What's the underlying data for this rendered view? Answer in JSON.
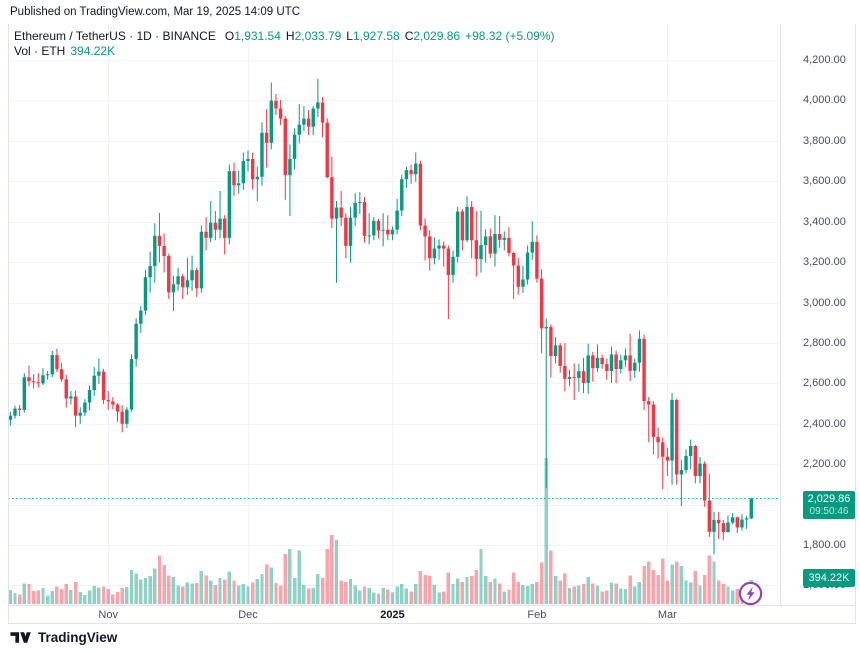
{
  "published": "Published on TradingView.com, Mar 19, 2025 14:09 UTC",
  "legend": {
    "title": "Ethereum / TetherUS · 1D · BINANCE",
    "o_label": "O",
    "o": "1,931.54",
    "h_label": "H",
    "h": "2,033.79",
    "l_label": "L",
    "l": "1,927.58",
    "c_label": "C",
    "c": "2,029.86",
    "change": "+98.32 (+5.09%)",
    "vol_label": "Vol · ETH",
    "vol_value": "394.22K"
  },
  "price_line": {
    "label": "2,029.86",
    "countdown": "09:50:46"
  },
  "volume_badge": "394.22K",
  "logo_text": "TradingView",
  "colors": {
    "up": "#089981",
    "down": "#f23645",
    "grid": "#f0f3fa",
    "border": "#e0e3eb",
    "text": "#131722",
    "axis_text": "#4a4e59",
    "accent_purple": "#9c3fb5",
    "volume_opacity": 0.45
  },
  "price_axis": {
    "labels": [
      {
        "text": "4,200.00",
        "value": 4200
      },
      {
        "text": "4,000.00",
        "value": 4000
      },
      {
        "text": "3,800.00",
        "value": 3800
      },
      {
        "text": "3,600.00",
        "value": 3600
      },
      {
        "text": "3,400.00",
        "value": 3400
      },
      {
        "text": "3,200.00",
        "value": 3200
      },
      {
        "text": "3,000.00",
        "value": 3000
      },
      {
        "text": "2,800.00",
        "value": 2800
      },
      {
        "text": "2,600.00",
        "value": 2600
      },
      {
        "text": "2,400.00",
        "value": 2400
      },
      {
        "text": "2,200.00",
        "value": 2200
      },
      {
        "text": "1,800.00",
        "value": 1800
      },
      {
        "text": "1,600.00",
        "value": 1600
      }
    ]
  },
  "time_axis": {
    "labels": [
      {
        "text": "Nov",
        "index": 21,
        "bold": false
      },
      {
        "text": "Dec",
        "index": 51,
        "bold": false
      },
      {
        "text": "2025",
        "index": 82,
        "bold": true
      },
      {
        "text": "Feb",
        "index": 113,
        "bold": false
      },
      {
        "text": "Mar",
        "index": 141,
        "bold": false
      }
    ]
  },
  "chart_data": {
    "type": "candlestick",
    "symbol": "Ethereum / TetherUS",
    "exchange": "BINANCE",
    "interval": "1D",
    "start_date": "2024-10-11",
    "end_date": "2025-03-19",
    "y_axis": {
      "label_min": 1600,
      "label_max": 4200,
      "step": 200
    },
    "x_axis_labels": [
      "Nov",
      "Dec",
      "2025",
      "Feb",
      "Mar"
    ],
    "month_start_indices": [
      21,
      51,
      82,
      113,
      141
    ],
    "volume_unit": "K ETH",
    "last": {
      "open": 1931.54,
      "high": 2033.79,
      "low": 1927.58,
      "close": 2029.86,
      "change": 98.32,
      "change_pct": 5.09,
      "volume_k": 394.22
    },
    "ohlcv": [
      [
        2420,
        2460,
        2390,
        2440,
        230
      ],
      [
        2440,
        2490,
        2425,
        2475,
        180
      ],
      [
        2475,
        2492,
        2438,
        2468,
        160
      ],
      [
        2468,
        2650,
        2455,
        2630,
        340
      ],
      [
        2630,
        2688,
        2585,
        2610,
        330
      ],
      [
        2610,
        2645,
        2575,
        2605,
        210
      ],
      [
        2605,
        2650,
        2580,
        2600,
        225
      ],
      [
        2600,
        2675,
        2592,
        2640,
        260
      ],
      [
        2640,
        2662,
        2618,
        2645,
        140
      ],
      [
        2645,
        2760,
        2630,
        2740,
        210
      ],
      [
        2740,
        2772,
        2655,
        2670,
        290
      ],
      [
        2670,
        2700,
        2608,
        2620,
        245
      ],
      [
        2620,
        2642,
        2480,
        2525,
        330
      ],
      [
        2525,
        2562,
        2495,
        2535,
        230
      ],
      [
        2535,
        2565,
        2382,
        2440,
        360
      ],
      [
        2440,
        2482,
        2400,
        2455,
        195
      ],
      [
        2455,
        2522,
        2438,
        2505,
        150
      ],
      [
        2505,
        2590,
        2468,
        2567,
        225
      ],
      [
        2567,
        2680,
        2538,
        2638,
        295
      ],
      [
        2638,
        2722,
        2598,
        2658,
        275
      ],
      [
        2658,
        2672,
        2498,
        2518,
        285
      ],
      [
        2518,
        2562,
        2468,
        2511,
        245
      ],
      [
        2511,
        2532,
        2472,
        2495,
        160
      ],
      [
        2495,
        2502,
        2410,
        2460,
        195
      ],
      [
        2460,
        2492,
        2358,
        2400,
        260
      ],
      [
        2400,
        2482,
        2380,
        2470,
        280
      ],
      [
        2470,
        2744,
        2460,
        2720,
        560
      ],
      [
        2720,
        2922,
        2682,
        2895,
        500
      ],
      [
        2895,
        2982,
        2848,
        2960,
        400
      ],
      [
        2960,
        3162,
        2938,
        3125,
        430
      ],
      [
        3125,
        3252,
        3048,
        3180,
        460
      ],
      [
        3180,
        3392,
        3098,
        3330,
        580
      ],
      [
        3330,
        3444,
        3198,
        3280,
        800
      ],
      [
        3280,
        3342,
        3148,
        3230,
        640
      ],
      [
        3230,
        3242,
        3018,
        3050,
        470
      ],
      [
        3050,
        3132,
        2958,
        3090,
        440
      ],
      [
        3090,
        3172,
        3058,
        3130,
        300
      ],
      [
        3130,
        3142,
        3018,
        3075,
        285
      ],
      [
        3075,
        3222,
        3038,
        3110,
        355
      ],
      [
        3110,
        3232,
        3058,
        3160,
        335
      ],
      [
        3160,
        3172,
        3028,
        3070,
        345
      ],
      [
        3070,
        3382,
        3048,
        3350,
        540
      ],
      [
        3350,
        3422,
        3258,
        3320,
        470
      ],
      [
        3320,
        3502,
        3298,
        3395,
        385
      ],
      [
        3395,
        3452,
        3308,
        3360,
        315
      ],
      [
        3360,
        3552,
        3318,
        3415,
        430
      ],
      [
        3415,
        3432,
        3238,
        3320,
        405
      ],
      [
        3320,
        3682,
        3288,
        3650,
        530
      ],
      [
        3650,
        3692,
        3528,
        3580,
        385
      ],
      [
        3580,
        3652,
        3538,
        3590,
        305
      ],
      [
        3590,
        3742,
        3558,
        3700,
        325
      ],
      [
        3700,
        3752,
        3648,
        3710,
        285
      ],
      [
        3710,
        3742,
        3558,
        3610,
        355
      ],
      [
        3610,
        3672,
        3502,
        3622,
        410
      ],
      [
        3622,
        3892,
        3578,
        3840,
        490
      ],
      [
        3840,
        3956,
        3668,
        3790,
        650
      ],
      [
        3790,
        4088,
        3758,
        3998,
        600
      ],
      [
        3998,
        4032,
        3928,
        3960,
        345
      ],
      [
        3960,
        4002,
        3878,
        3910,
        305
      ],
      [
        3910,
        3922,
        3508,
        3630,
        820
      ],
      [
        3630,
        3782,
        3428,
        3710,
        900
      ],
      [
        3710,
        3862,
        3658,
        3830,
        430
      ],
      [
        3830,
        3982,
        3788,
        3880,
        880
      ],
      [
        3880,
        3972,
        3848,
        3910,
        310
      ],
      [
        3910,
        3952,
        3828,
        3870,
        255
      ],
      [
        3870,
        3972,
        3828,
        3960,
        265
      ],
      [
        3960,
        4107,
        3918,
        3990,
        490
      ],
      [
        3990,
        4016,
        3818,
        3890,
        430
      ],
      [
        3890,
        3912,
        3615,
        3620,
        900
      ],
      [
        3620,
        3722,
        3368,
        3415,
        1130
      ],
      [
        3415,
        3502,
        3098,
        3470,
        1050
      ],
      [
        3470,
        3552,
        3378,
        3420,
        390
      ],
      [
        3420,
        3442,
        3218,
        3280,
        360
      ],
      [
        3280,
        3472,
        3198,
        3420,
        410
      ],
      [
        3420,
        3542,
        3378,
        3492,
        305
      ],
      [
        3492,
        3546,
        3438,
        3497,
        225
      ],
      [
        3497,
        3522,
        3298,
        3330,
        285
      ],
      [
        3330,
        3442,
        3288,
        3332,
        265
      ],
      [
        3332,
        3422,
        3308,
        3404,
        185
      ],
      [
        3404,
        3414,
        3318,
        3356,
        175
      ],
      [
        3356,
        3442,
        3278,
        3360,
        265
      ],
      [
        3360,
        3432,
        3308,
        3337,
        235
      ],
      [
        3337,
        3376,
        3308,
        3360,
        185
      ],
      [
        3360,
        3512,
        3338,
        3455,
        285
      ],
      [
        3455,
        3632,
        3428,
        3610,
        330
      ],
      [
        3610,
        3672,
        3568,
        3655,
        255
      ],
      [
        3655,
        3682,
        3588,
        3635,
        205
      ],
      [
        3635,
        3742,
        3598,
        3687,
        330
      ],
      [
        3687,
        3702,
        3358,
        3381,
        540
      ],
      [
        3381,
        3416,
        3208,
        3327,
        480
      ],
      [
        3327,
        3358,
        3158,
        3219,
        460
      ],
      [
        3219,
        3322,
        3188,
        3267,
        310
      ],
      [
        3267,
        3312,
        3212,
        3282,
        185
      ],
      [
        3282,
        3302,
        3178,
        3267,
        205
      ],
      [
        3267,
        3282,
        2918,
        3136,
        520
      ],
      [
        3136,
        3258,
        3098,
        3226,
        330
      ],
      [
        3226,
        3473,
        3198,
        3450,
        420
      ],
      [
        3450,
        3462,
        3258,
        3308,
        365
      ],
      [
        3308,
        3526,
        3298,
        3473,
        440
      ],
      [
        3473,
        3502,
        3218,
        3308,
        460
      ],
      [
        3308,
        3452,
        3128,
        3215,
        560
      ],
      [
        3215,
        3454,
        3148,
        3284,
        900
      ],
      [
        3284,
        3362,
        3198,
        3327,
        460
      ],
      [
        3327,
        3366,
        3220,
        3242,
        360
      ],
      [
        3242,
        3432,
        3178,
        3339,
        420
      ],
      [
        3339,
        3428,
        3272,
        3310,
        340
      ],
      [
        3310,
        3352,
        3258,
        3320,
        205
      ],
      [
        3320,
        3372,
        3228,
        3245,
        235
      ],
      [
        3245,
        3252,
        3018,
        3183,
        520
      ],
      [
        3183,
        3222,
        3038,
        3078,
        365
      ],
      [
        3078,
        3182,
        3048,
        3114,
        310
      ],
      [
        3114,
        3282,
        3088,
        3247,
        295
      ],
      [
        3247,
        3402,
        3212,
        3300,
        330
      ],
      [
        3300,
        3332,
        3098,
        3118,
        360
      ],
      [
        3118,
        3165,
        2748,
        2872,
        680
      ],
      [
        2872,
        2921,
        2080,
        2879,
        2400
      ],
      [
        2879,
        2892,
        2628,
        2735,
        880
      ],
      [
        2735,
        2828,
        2698,
        2788,
        460
      ],
      [
        2788,
        2799,
        2652,
        2686,
        390
      ],
      [
        2686,
        2798,
        2560,
        2622,
        500
      ],
      [
        2622,
        2666,
        2586,
        2632,
        265
      ],
      [
        2632,
        2699,
        2518,
        2627,
        290
      ],
      [
        2627,
        2697,
        2558,
        2660,
        305
      ],
      [
        2660,
        2726,
        2552,
        2602,
        330
      ],
      [
        2602,
        2796,
        2548,
        2738,
        440
      ],
      [
        2738,
        2756,
        2608,
        2675,
        340
      ],
      [
        2675,
        2792,
        2658,
        2726,
        305
      ],
      [
        2726,
        2742,
        2672,
        2695,
        205
      ],
      [
        2695,
        2722,
        2618,
        2661,
        225
      ],
      [
        2661,
        2782,
        2602,
        2743,
        355
      ],
      [
        2743,
        2762,
        2602,
        2671,
        335
      ],
      [
        2671,
        2742,
        2648,
        2714,
        255
      ],
      [
        2714,
        2772,
        2682,
        2738,
        245
      ],
      [
        2738,
        2846,
        2612,
        2662,
        470
      ],
      [
        2662,
        2722,
        2628,
        2702,
        285
      ],
      [
        2702,
        2862,
        2658,
        2820,
        360
      ],
      [
        2820,
        2842,
        2468,
        2512,
        620
      ],
      [
        2512,
        2532,
        2308,
        2495,
        700
      ],
      [
        2495,
        2512,
        2248,
        2335,
        560
      ],
      [
        2335,
        2382,
        2228,
        2308,
        480
      ],
      [
        2308,
        2332,
        2076,
        2237,
        750
      ],
      [
        2237,
        2282,
        2142,
        2218,
        390
      ],
      [
        2218,
        2552,
        2098,
        2518,
        650
      ],
      [
        2518,
        2524,
        2098,
        2149,
        700
      ],
      [
        2149,
        2222,
        1993,
        2171,
        620
      ],
      [
        2171,
        2274,
        2155,
        2241,
        385
      ],
      [
        2241,
        2322,
        2175,
        2290,
        355
      ],
      [
        2290,
        2296,
        2105,
        2141,
        540
      ],
      [
        2141,
        2236,
        2105,
        2203,
        300
      ],
      [
        2203,
        2214,
        1989,
        2020,
        480
      ],
      [
        2020,
        2153,
        1840,
        1865,
        800
      ],
      [
        1865,
        1963,
        1754,
        1924,
        700
      ],
      [
        1924,
        1962,
        1829,
        1908,
        390
      ],
      [
        1908,
        1924,
        1823,
        1864,
        330
      ],
      [
        1864,
        1946,
        1861,
        1911,
        285
      ],
      [
        1911,
        1958,
        1903,
        1937,
        225
      ],
      [
        1937,
        1941,
        1860,
        1887,
        245
      ],
      [
        1887,
        1953,
        1872,
        1926,
        265
      ],
      [
        1926,
        1945,
        1880,
        1932,
        285
      ],
      [
        1931.54,
        2033.79,
        1927.58,
        2029.86,
        394.22
      ]
    ]
  }
}
